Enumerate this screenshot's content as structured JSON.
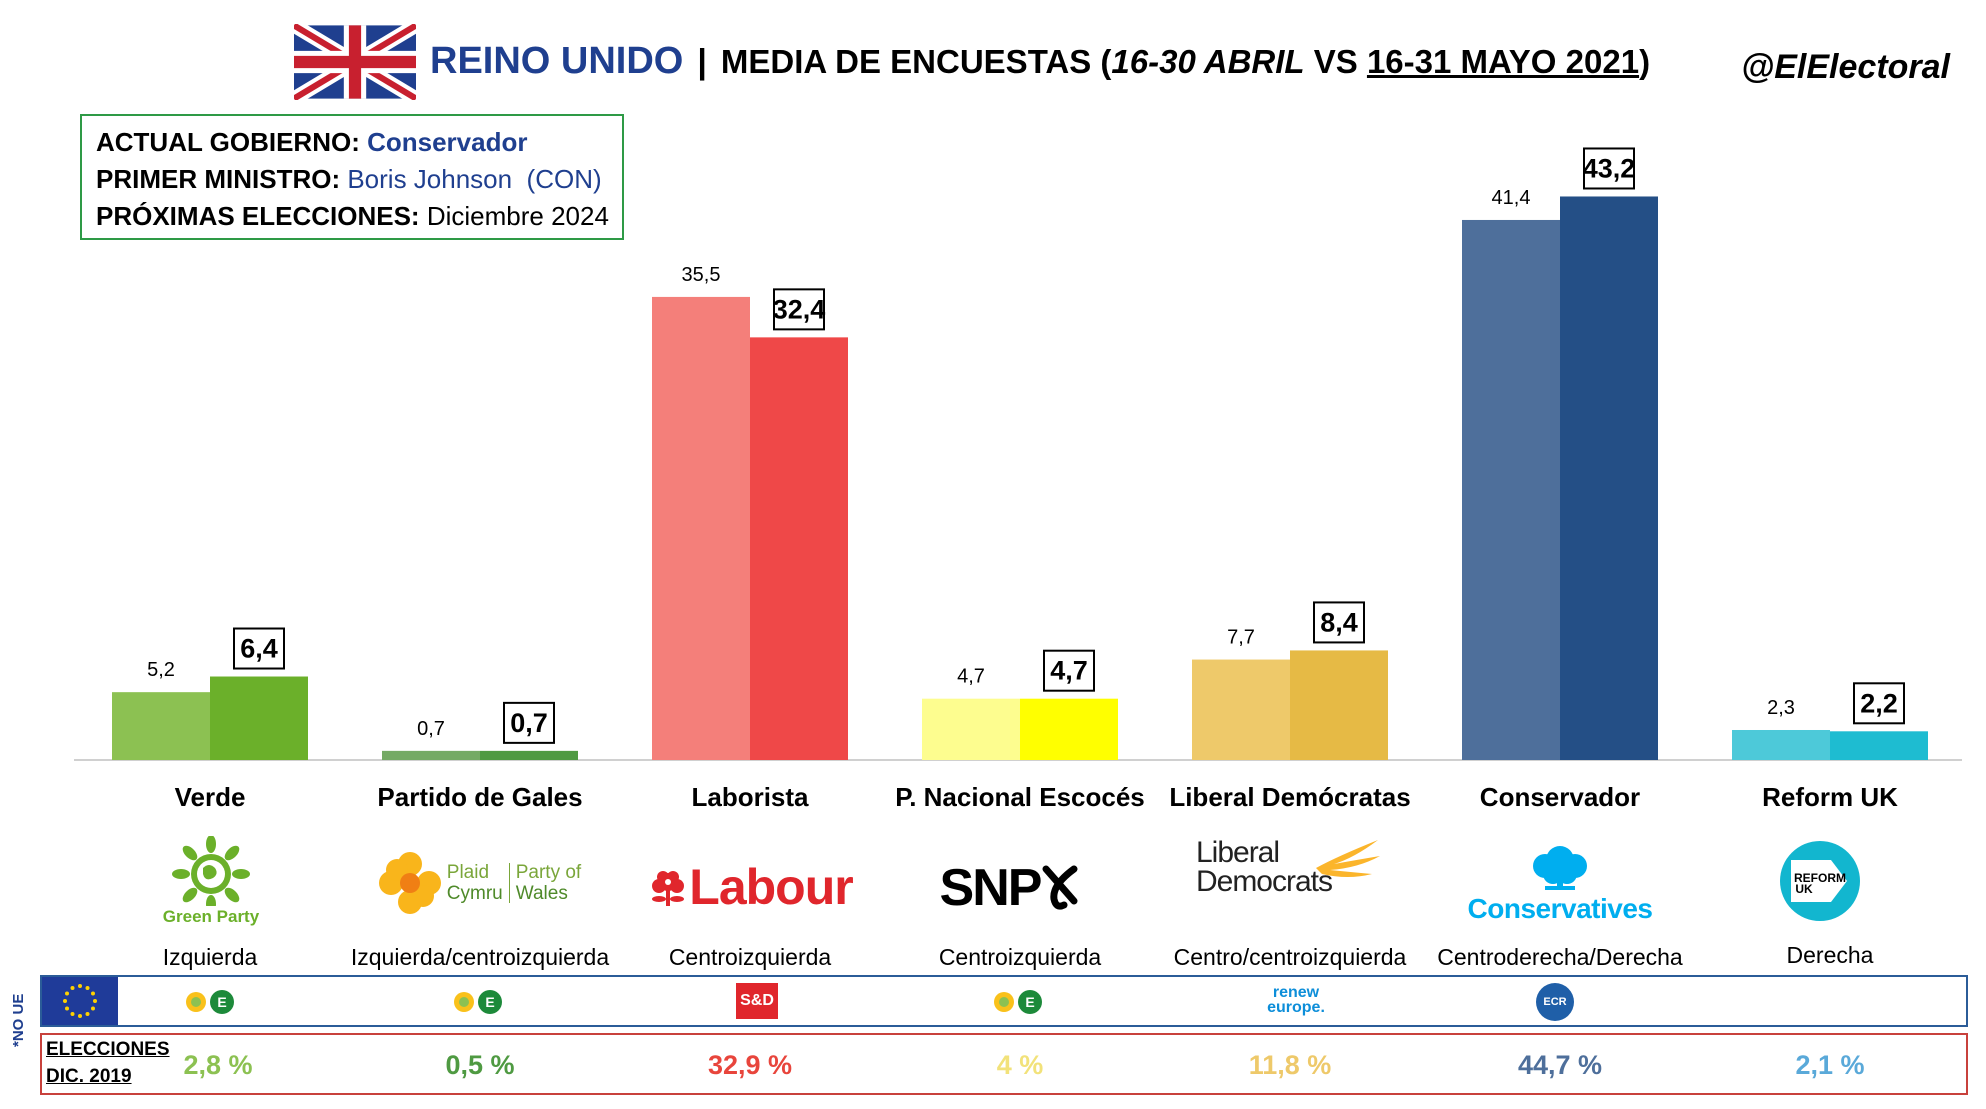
{
  "header": {
    "country": "REINO UNIDO",
    "separator": "|",
    "subtitle_prefix": "MEDIA DE ENCUESTAS (",
    "period_1": "16-30 ABRIL",
    "vs": " VS ",
    "period_2": "16-31 MAYO 2021",
    "close": ")",
    "handle": "@ElElectoral"
  },
  "info": {
    "gov_label": "ACTUAL GOBIERNO:",
    "gov_value": "Conservador",
    "pm_label": "PRIMER MINISTRO:",
    "pm_value": "Boris Johnson  (CON)",
    "next_label": "PRÓXIMAS ELECCIONES:",
    "next_value": "Diciembre 2024"
  },
  "chart_data": {
    "type": "bar",
    "title": "MEDIA DE ENCUESTAS (16-30 ABRIL VS 16-31 MAYO 2021)",
    "categories": [
      "Verde",
      "Partido de Gales",
      "Laborista",
      "P. Nacional Escocés",
      "Liberal Demócratas",
      "Conservador",
      "Reform UK"
    ],
    "series": [
      {
        "name": "16-30 ABRIL",
        "values": [
          5.2,
          0.7,
          35.5,
          4.7,
          7.7,
          41.4,
          2.3
        ]
      },
      {
        "name": "16-31 MAYO 2021",
        "values": [
          6.4,
          0.7,
          32.4,
          4.7,
          8.4,
          43.2,
          2.2
        ]
      }
    ],
    "value_labels_apr": [
      "5,2",
      "0,7",
      "35,5",
      "4,7",
      "7,7",
      "41,4",
      "2,3"
    ],
    "value_labels_may": [
      "6,4",
      "0,7",
      "32,4",
      "4,7",
      "8,4",
      "43,2",
      "2,2"
    ],
    "colors_apr": [
      "#8cc152",
      "#74aa64",
      "#f47f7a",
      "#fdfd8f",
      "#eec96a",
      "#4e6f9b",
      "#4dc9d9"
    ],
    "colors_may": [
      "#6bb02a",
      "#4f9a42",
      "#ef4848",
      "#ffff00",
      "#e6ba45",
      "#244f86",
      "#1ebcd1"
    ],
    "ylim": [
      0,
      45
    ],
    "xlabel": "",
    "ylabel": "",
    "grid": false
  },
  "parties": [
    {
      "logo_text": "Green Party",
      "orientation": "Izquierda"
    },
    {
      "logo_text_1": "Plaid",
      "logo_text_2": "Cymru",
      "logo_text_3": "Party of",
      "logo_text_4": "Wales",
      "orientation": "Izquierda/centroizquierda"
    },
    {
      "logo_text": "Labour",
      "orientation": "Centroizquierda"
    },
    {
      "logo_text": "SNP",
      "orientation": "Centroizquierda"
    },
    {
      "logo_text_1": "Liberal",
      "logo_text_2": "Democrats",
      "orientation": "Centro/centroizquierda"
    },
    {
      "logo_text": "Conservatives",
      "orientation": "Centroderecha/Derecha"
    },
    {
      "logo_text_1": "REFORM",
      "logo_text_2": "UK",
      "orientation": "Derecha"
    }
  ],
  "eu_groups": {
    "no_ue": "*NO UE",
    "sd": "S&D",
    "renew": "renew europe.",
    "ecr": "ECR"
  },
  "elections": {
    "label_1": "ELECCIONES",
    "label_2": "DIC. 2019",
    "values": [
      "2,8 %",
      "0,5 %",
      "32,9 %",
      "4 %",
      "11,8 %",
      "44,7 %",
      "2,1 %"
    ],
    "colors": [
      "#8cc152",
      "#4f9a42",
      "#e8453c",
      "#f2e27a",
      "#eec96a",
      "#4e6f9b",
      "#5aa9d9"
    ]
  }
}
